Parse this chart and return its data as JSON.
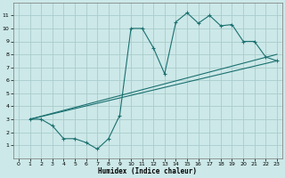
{
  "xlabel": "Humidex (Indice chaleur)",
  "bg_color": "#cce8e8",
  "grid_color": "#aacccc",
  "line_color": "#1a7070",
  "xlim": [
    -0.5,
    23.5
  ],
  "ylim": [
    0,
    12
  ],
  "xticks": [
    0,
    1,
    2,
    3,
    4,
    5,
    6,
    7,
    8,
    9,
    10,
    11,
    12,
    13,
    14,
    15,
    16,
    17,
    18,
    19,
    20,
    21,
    22,
    23
  ],
  "yticks": [
    1,
    2,
    3,
    4,
    5,
    6,
    7,
    8,
    9,
    10,
    11
  ],
  "curve_x": [
    1,
    2,
    3,
    4,
    5,
    6,
    7,
    8,
    9,
    10,
    11,
    12,
    13,
    14,
    15,
    16,
    17,
    18,
    19,
    20,
    21,
    22,
    23
  ],
  "curve_y": [
    3.0,
    3.0,
    2.5,
    1.5,
    1.5,
    1.2,
    0.7,
    1.5,
    3.3,
    10.0,
    10.0,
    8.5,
    6.5,
    10.5,
    11.2,
    10.4,
    11.0,
    10.2,
    10.3,
    9.0,
    9.0,
    7.8,
    7.5
  ],
  "line1_x": [
    1,
    23
  ],
  "line1_y": [
    3.0,
    8.0
  ],
  "line2_x": [
    1,
    23
  ],
  "line2_y": [
    3.0,
    7.5
  ]
}
